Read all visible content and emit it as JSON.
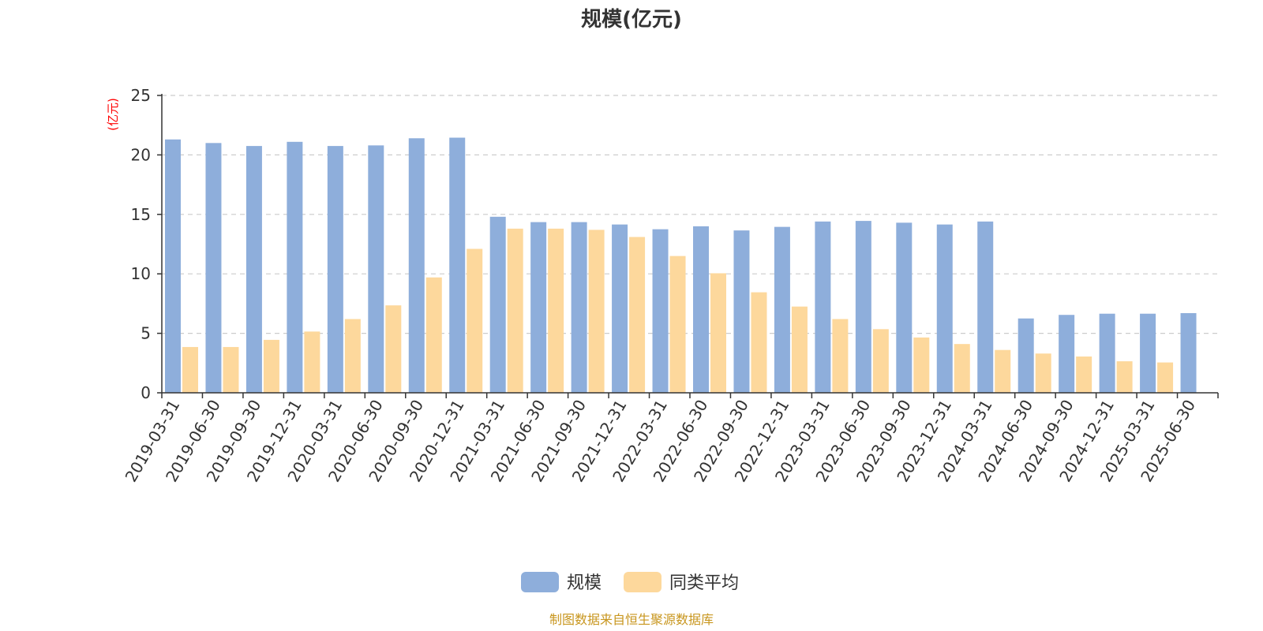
{
  "chart_data": {
    "type": "bar",
    "title": "规模(亿元)",
    "ylabel": "(亿元)",
    "ylim": [
      0,
      25
    ],
    "yticks": [
      0,
      5,
      10,
      15,
      20,
      25
    ],
    "grid": true,
    "legend_position": "bottom",
    "categories": [
      "2019-03-31",
      "2019-06-30",
      "2019-09-30",
      "2019-12-31",
      "2020-03-31",
      "2020-06-30",
      "2020-09-30",
      "2020-12-31",
      "2021-03-31",
      "2021-06-30",
      "2021-09-30",
      "2021-12-31",
      "2022-03-31",
      "2022-06-30",
      "2022-09-30",
      "2022-12-31",
      "2023-03-31",
      "2023-06-30",
      "2023-09-30",
      "2023-12-31",
      "2024-03-31",
      "2024-06-30",
      "2024-09-30",
      "2024-12-31",
      "2025-03-31",
      "2025-06-30"
    ],
    "series": [
      {
        "name": "规模",
        "color": "#8eaedb",
        "values": [
          21.3,
          21.0,
          20.75,
          21.1,
          20.75,
          20.8,
          21.4,
          21.45,
          14.8,
          14.35,
          14.35,
          14.15,
          13.75,
          14.0,
          13.65,
          13.95,
          14.4,
          14.45,
          14.3,
          14.15,
          14.4,
          6.25,
          6.55,
          6.65,
          6.65,
          6.7
        ]
      },
      {
        "name": "同类平均",
        "color": "#fdd89c",
        "values": [
          3.85,
          3.85,
          4.45,
          5.15,
          6.2,
          7.35,
          9.7,
          12.1,
          13.8,
          13.8,
          13.7,
          13.1,
          11.5,
          10.05,
          8.45,
          7.25,
          6.2,
          5.35,
          4.65,
          4.1,
          3.6,
          3.3,
          3.05,
          2.65,
          2.55,
          null
        ]
      }
    ]
  },
  "footer": {
    "source": "制图数据来自恒生聚源数据库"
  }
}
